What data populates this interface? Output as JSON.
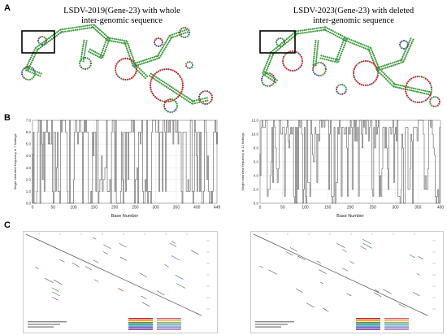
{
  "panels": {
    "a": {
      "letter": "A",
      "left_title_line1": "LSDV-2019(Gene-23)  with whole",
      "left_title_line2": "inter-genomic sequence",
      "right_title_line1": "LSDV-2023(Gene-23)  with deleted",
      "right_title_line2": "inter-genomic  sequence"
    },
    "b": {
      "letter": "B"
    },
    "c": {
      "letter": "C"
    }
  },
  "colors": {
    "stem_green": "#3c9a3c",
    "loop_red": "#c62828",
    "loop_blue": "#3f51b5",
    "line_black": "#222222",
    "box_black": "#000000"
  },
  "chart_data": [
    {
      "type": "line",
      "title": "",
      "xlabel": "Base Number",
      "ylabel": "Single stranded frequency in 7 foldings",
      "xlim": [
        0,
        449
      ],
      "ylim": [
        0,
        7
      ],
      "xticks": [
        0,
        50,
        100,
        150,
        200,
        250,
        300,
        350,
        400,
        449
      ],
      "yticks": [
        0.0,
        1.0,
        2.0,
        3.0,
        4.0,
        5.0,
        6.0,
        7.0
      ],
      "x_tick_labels": [
        "0",
        "50",
        "100",
        "150",
        "200",
        "250",
        "300",
        "350",
        "400",
        "449"
      ],
      "y_tick_labels": [
        "0.0",
        "1.0",
        "2.0",
        "3.0",
        "4.0",
        "5.0",
        "6.0",
        "7.0"
      ],
      "grid": true,
      "seed": 7
    },
    {
      "type": "line",
      "title": "",
      "xlabel": "Base Number",
      "ylabel": "Single stranded frequency in 12 foldings",
      "xlim": [
        0,
        400
      ],
      "ylim": [
        0,
        12
      ],
      "xticks": [
        0,
        50,
        100,
        150,
        200,
        250,
        300,
        350,
        400
      ],
      "yticks": [
        0.0,
        2.0,
        4.0,
        6.0,
        8.0,
        10.0,
        12.0
      ],
      "x_tick_labels": [
        "0",
        "50",
        "100",
        "150",
        "200",
        "250",
        "300",
        "350",
        "400"
      ],
      "y_tick_labels": [
        "0.0",
        "2.0",
        "4.0",
        "6.0",
        "8.0",
        "10.0",
        "12.0"
      ],
      "grid": true,
      "seed": 12
    }
  ]
}
